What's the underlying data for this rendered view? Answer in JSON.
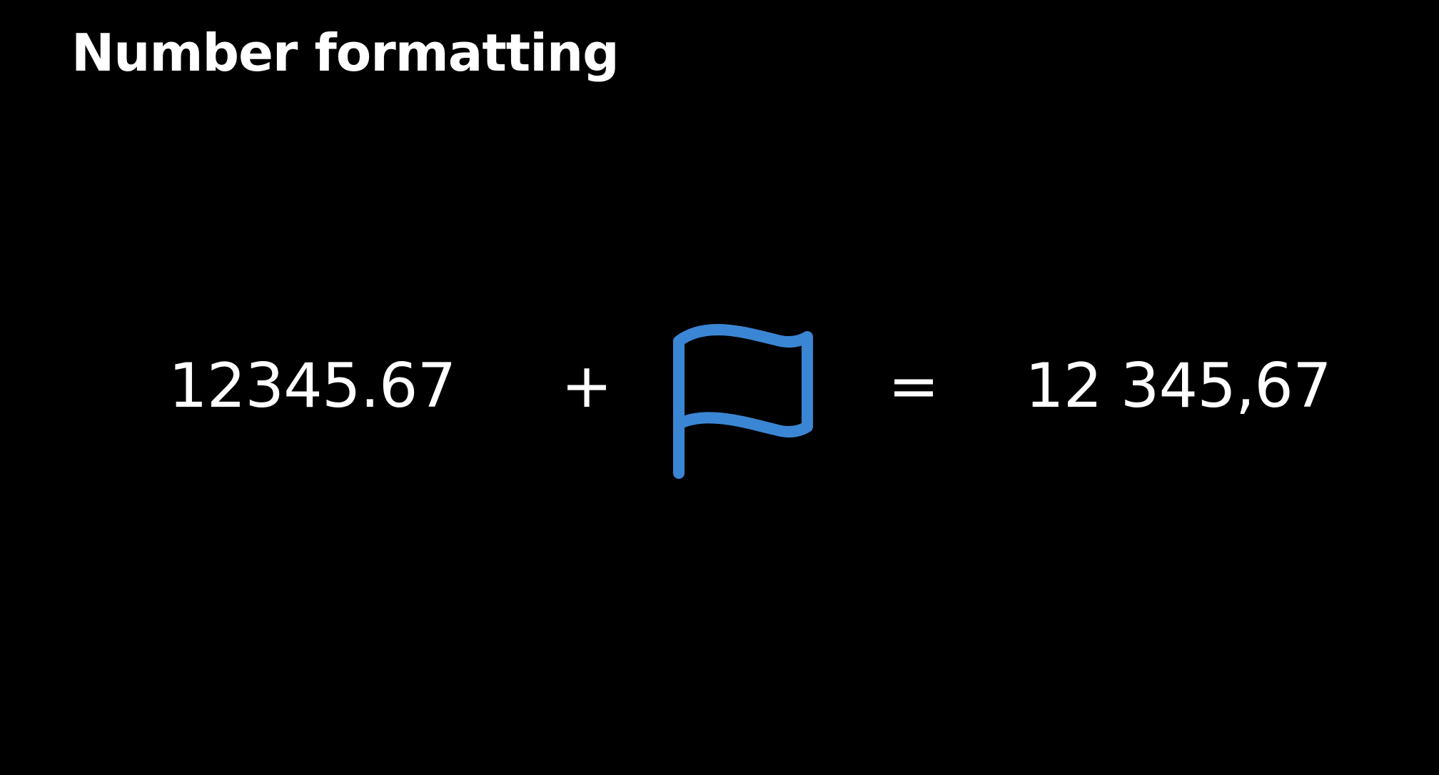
{
  "slide": {
    "title": "Number formatting",
    "equation": {
      "input_number": "12345.67",
      "plus_symbol": "+",
      "locale_icon": "flag-icon",
      "equals_symbol": "=",
      "output_number": "12 345,67"
    }
  },
  "colors": {
    "background": "#000000",
    "text": "#ffffff",
    "flag_accent": "#3a86d4"
  }
}
